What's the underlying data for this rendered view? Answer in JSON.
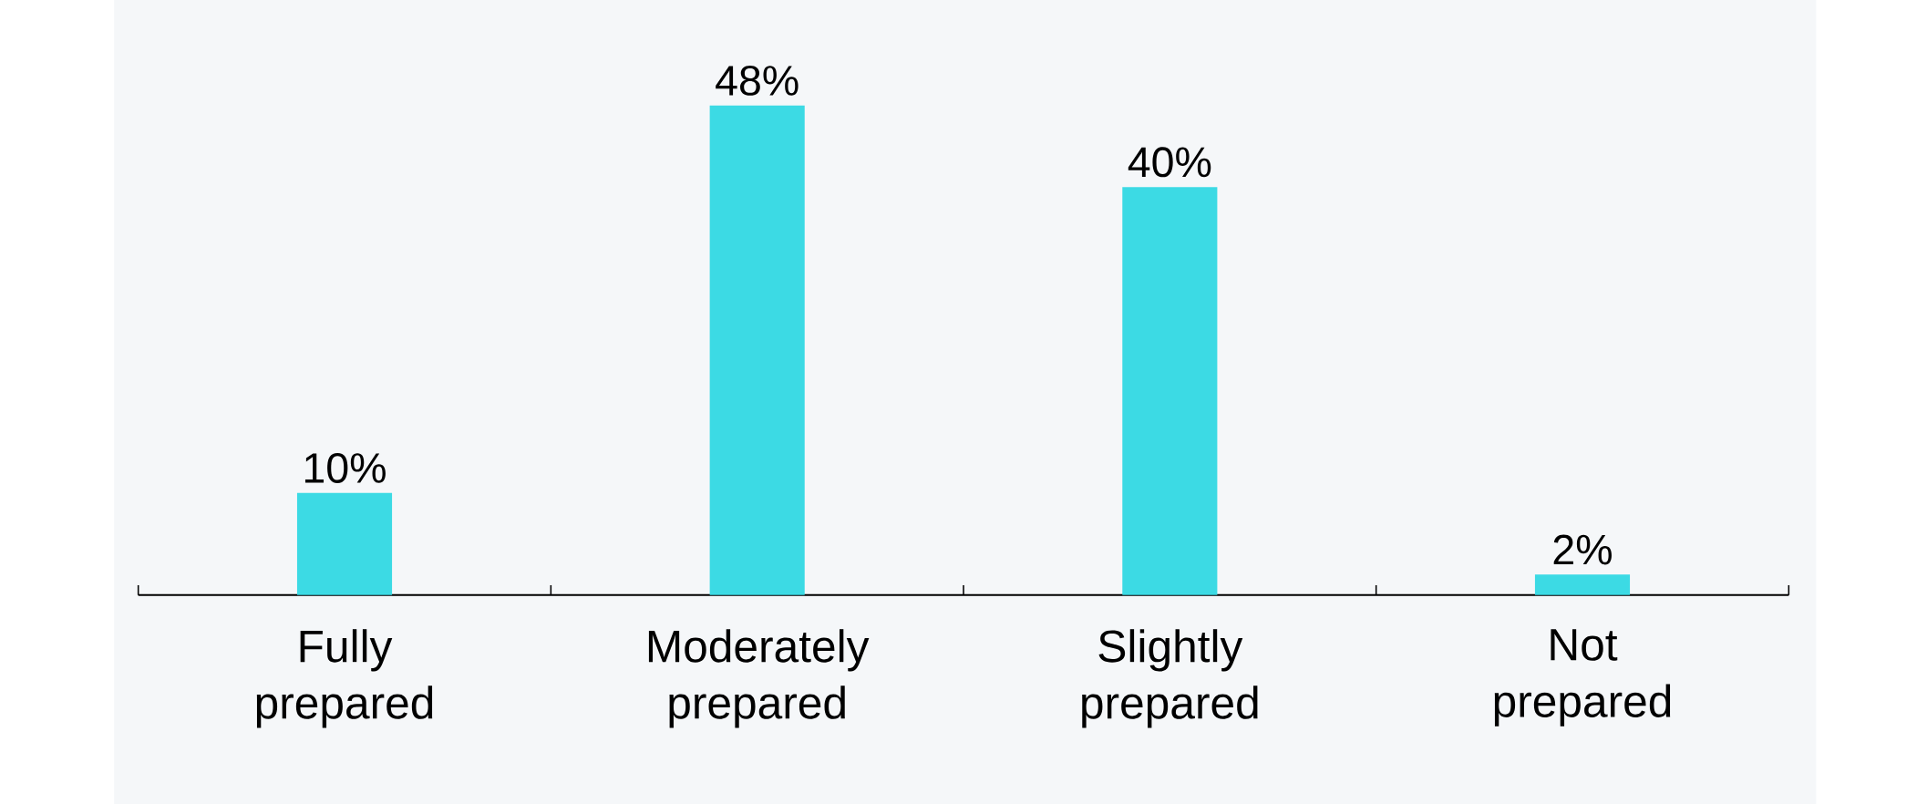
{
  "chart_data": {
    "type": "bar",
    "categories": [
      "Fully prepared",
      "Moderately prepared",
      "Slightly prepared",
      "Not prepared"
    ],
    "values": [
      10,
      48,
      40,
      2
    ],
    "value_labels": [
      "10%",
      "48%",
      "40%",
      "2%"
    ],
    "color": "#3cdae4"
  }
}
